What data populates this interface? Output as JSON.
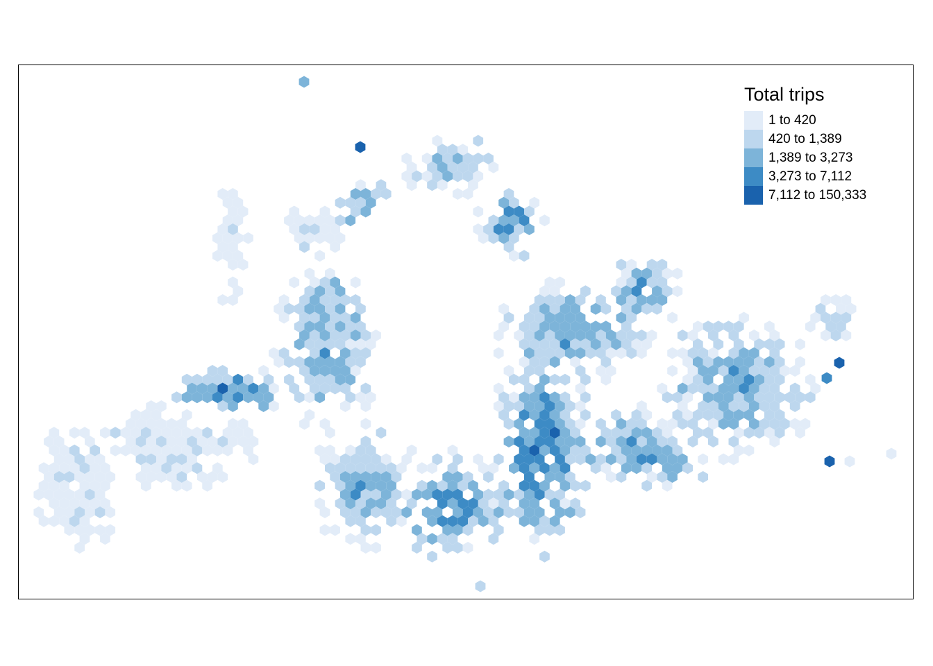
{
  "legend": {
    "title": "Total trips",
    "classes": [
      {
        "label": "1 to 420",
        "color": "#e2ecf8"
      },
      {
        "label": "420 to 1,389",
        "color": "#bdd7ee"
      },
      {
        "label": "1,389 to 3,273",
        "color": "#7db4d9"
      },
      {
        "label": "3,273 to 7,112",
        "color": "#3d8bc5"
      },
      {
        "label": "7,112 to 150,333",
        "color": "#1a62ad"
      }
    ]
  },
  "map": {
    "type": "hexbin choropleth",
    "value_name": "Total trips"
  }
}
